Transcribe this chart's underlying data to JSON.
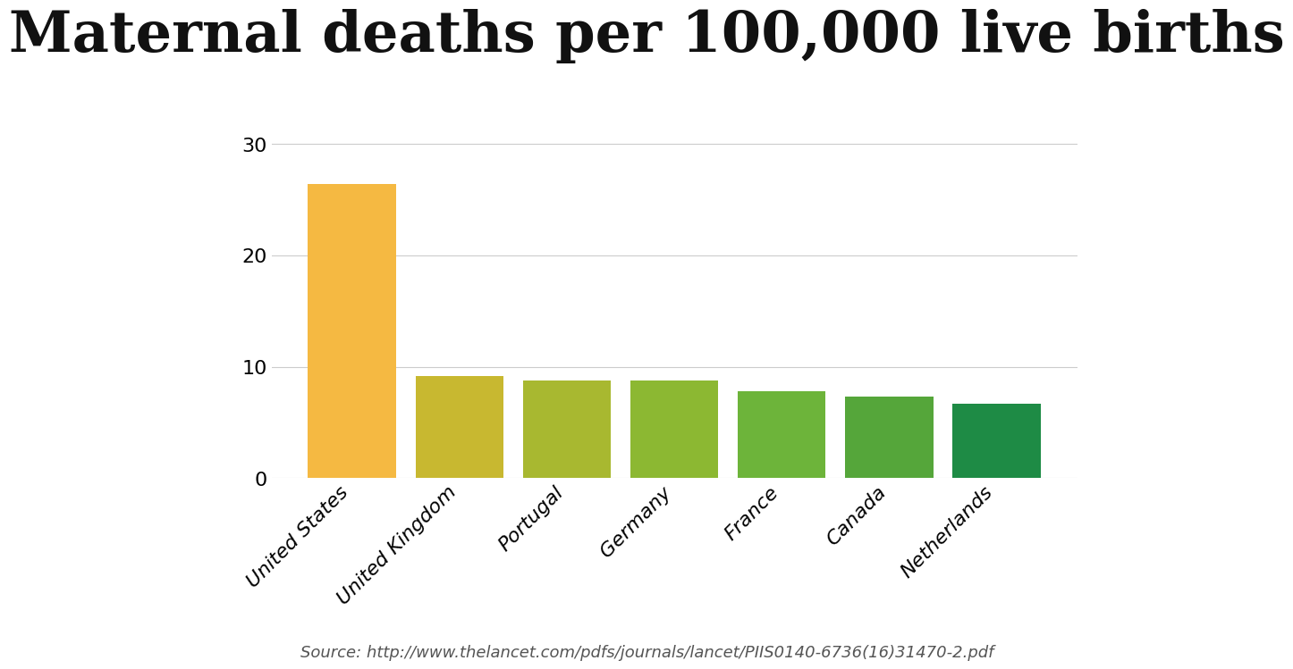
{
  "title": "Maternal deaths per 100,000 live births",
  "categories": [
    "United States",
    "United Kingdom",
    "Portugal",
    "Germany",
    "France",
    "Canada",
    "Netherlands"
  ],
  "values": [
    26.4,
    9.2,
    8.8,
    8.8,
    7.8,
    7.3,
    6.7
  ],
  "colors": [
    "#F5B942",
    "#C8B830",
    "#A8B830",
    "#8CB832",
    "#6DB43A",
    "#55A63A",
    "#1E8B45"
  ],
  "ylim": [
    0,
    32
  ],
  "yticks": [
    0,
    10,
    20,
    30
  ],
  "source": "Source: http://www.thelancet.com/pdfs/journals/lancet/PIIS0140-6736(16)31470-2.pdf",
  "background_color": "#FFFFFF",
  "title_fontsize": 46,
  "tick_fontsize": 16,
  "xlabel_fontsize": 16,
  "source_fontsize": 13,
  "bar_width": 0.82
}
